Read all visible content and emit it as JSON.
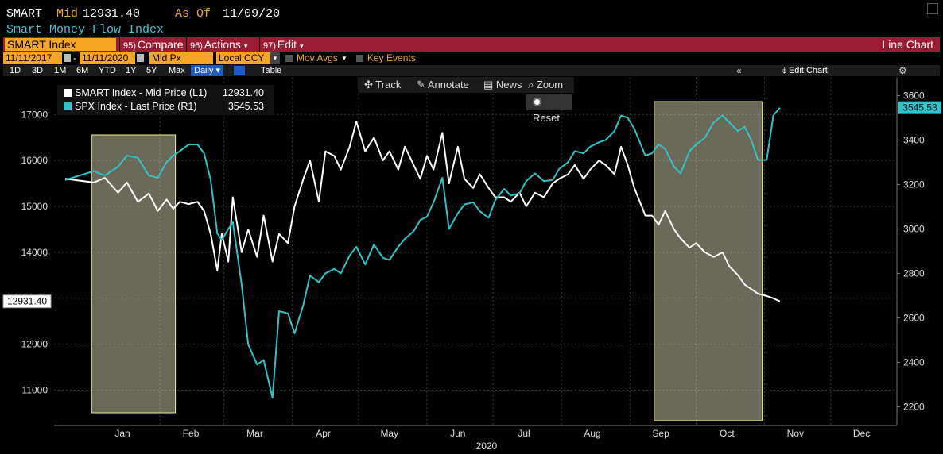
{
  "header": {
    "ticker": "SMART",
    "mid_label": "Mid",
    "mid_value": "12931.40",
    "as_of_label": "As Of",
    "as_of_date": "11/09/20",
    "subtitle": "Smart Money Flow Index"
  },
  "toolbar": {
    "index_field": "SMART Index",
    "compare_num": "95)",
    "compare_label": "Compare",
    "actions_num": "96)",
    "actions_label": "Actions",
    "edit_num": "97)",
    "edit_label": "Edit",
    "chart_type": "Line Chart"
  },
  "settings": {
    "start_date": "11/11/2017",
    "end_date": "11/11/2020",
    "price_field": "Mid Px",
    "currency": "Local CCY",
    "mov_avgs": "Mov Avgs",
    "key_events": "Key Events"
  },
  "ranges": {
    "buttons": [
      "1D",
      "3D",
      "1M",
      "6M",
      "YTD",
      "1Y",
      "5Y",
      "Max"
    ],
    "active": "Daily",
    "table_label": "Table",
    "edit_chart": "Edit Chart"
  },
  "tools": {
    "track": "Track",
    "annotate": "Annotate",
    "news": "News",
    "zoom": "Zoom",
    "reset": "Reset"
  },
  "colors": {
    "background": "#000000",
    "smart_line": "#ffffff",
    "spx_line": "#2ec4c9",
    "highlight_fill": "#fffbd1",
    "highlight_border": "#f3f08a",
    "accent_orange": "#f5a623",
    "toolbar_red": "#9b1c31"
  },
  "chart_data": {
    "type": "line",
    "xlabel": "2020",
    "x_tick_labels": [
      "Jan",
      "Feb",
      "Mar",
      "Apr",
      "May",
      "Jun",
      "Jul",
      "Aug",
      "Sep",
      "Oct",
      "Nov",
      "Dec"
    ],
    "y_left": {
      "ticks": [
        11000,
        12000,
        13000,
        14000,
        15000,
        16000,
        17000
      ],
      "range": [
        10300,
        17800
      ],
      "current_label": "12931.40"
    },
    "y_right": {
      "ticks": [
        2200,
        2400,
        2600,
        2800,
        3000,
        3200,
        3400,
        3600
      ],
      "range": [
        2130,
        3680
      ],
      "current_label": "3545.53"
    },
    "grid": true,
    "legend_position": "top-left",
    "highlight_regions": [
      {
        "from": "2020-01-01",
        "to": "2020-02-08"
      },
      {
        "from": "2020-09-12",
        "to": "2020-10-31"
      }
    ],
    "series": [
      {
        "name": "SMART Index - Mid Price (L1)",
        "legend_value": "12931.40",
        "axis": "left",
        "points": [
          [
            "2019-12-20",
            15600
          ],
          [
            "2020-01-02",
            15520
          ],
          [
            "2020-01-07",
            15620
          ],
          [
            "2020-01-13",
            15300
          ],
          [
            "2020-01-17",
            15520
          ],
          [
            "2020-01-22",
            15100
          ],
          [
            "2020-01-27",
            15280
          ],
          [
            "2020-01-31",
            14900
          ],
          [
            "2020-02-04",
            15150
          ],
          [
            "2020-02-07",
            14950
          ],
          [
            "2020-02-10",
            15100
          ],
          [
            "2020-02-14",
            15050
          ],
          [
            "2020-02-18",
            15100
          ],
          [
            "2020-02-21",
            14900
          ],
          [
            "2020-02-24",
            14400
          ],
          [
            "2020-02-27",
            13600
          ],
          [
            "2020-02-29",
            14400
          ],
          [
            "2020-03-03",
            13800
          ],
          [
            "2020-03-05",
            15200
          ],
          [
            "2020-03-09",
            14000
          ],
          [
            "2020-03-12",
            14500
          ],
          [
            "2020-03-16",
            13900
          ],
          [
            "2020-03-19",
            14800
          ],
          [
            "2020-03-23",
            13800
          ],
          [
            "2020-03-26",
            14400
          ],
          [
            "2020-03-30",
            14200
          ],
          [
            "2020-04-02",
            15000
          ],
          [
            "2020-04-06",
            15600
          ],
          [
            "2020-04-09",
            16000
          ],
          [
            "2020-04-13",
            15100
          ],
          [
            "2020-04-16",
            16200
          ],
          [
            "2020-04-20",
            16100
          ],
          [
            "2020-04-23",
            15800
          ],
          [
            "2020-04-27",
            16300
          ],
          [
            "2020-04-30",
            16850
          ],
          [
            "2020-05-04",
            16200
          ],
          [
            "2020-05-08",
            16500
          ],
          [
            "2020-05-12",
            16000
          ],
          [
            "2020-05-15",
            16200
          ],
          [
            "2020-05-19",
            15800
          ],
          [
            "2020-05-22",
            16300
          ],
          [
            "2020-05-26",
            15900
          ],
          [
            "2020-05-29",
            15600
          ],
          [
            "2020-06-01",
            16100
          ],
          [
            "2020-06-04",
            15800
          ],
          [
            "2020-06-08",
            16600
          ],
          [
            "2020-06-11",
            15500
          ],
          [
            "2020-06-15",
            16300
          ],
          [
            "2020-06-18",
            15600
          ],
          [
            "2020-06-22",
            15400
          ],
          [
            "2020-06-25",
            15700
          ],
          [
            "2020-06-29",
            15400
          ],
          [
            "2020-07-02",
            15200
          ],
          [
            "2020-07-06",
            15200
          ],
          [
            "2020-07-09",
            15100
          ],
          [
            "2020-07-13",
            15300
          ],
          [
            "2020-07-16",
            15000
          ],
          [
            "2020-07-20",
            15300
          ],
          [
            "2020-07-24",
            15200
          ],
          [
            "2020-07-28",
            15500
          ],
          [
            "2020-07-31",
            15600
          ],
          [
            "2020-08-04",
            15700
          ],
          [
            "2020-08-07",
            15900
          ],
          [
            "2020-08-11",
            15600
          ],
          [
            "2020-08-14",
            15800
          ],
          [
            "2020-08-18",
            16000
          ],
          [
            "2020-08-21",
            15900
          ],
          [
            "2020-08-25",
            15700
          ],
          [
            "2020-08-28",
            16300
          ],
          [
            "2020-08-31",
            15900
          ],
          [
            "2020-09-03",
            15400
          ],
          [
            "2020-09-08",
            14800
          ],
          [
            "2020-09-11",
            14800
          ],
          [
            "2020-09-14",
            14600
          ],
          [
            "2020-09-17",
            14900
          ],
          [
            "2020-09-21",
            14500
          ],
          [
            "2020-09-24",
            14300
          ],
          [
            "2020-09-28",
            14100
          ],
          [
            "2020-10-01",
            14200
          ],
          [
            "2020-10-05",
            14000
          ],
          [
            "2020-10-09",
            13900
          ],
          [
            "2020-10-13",
            14000
          ],
          [
            "2020-10-16",
            13700
          ],
          [
            "2020-10-20",
            13500
          ],
          [
            "2020-10-23",
            13300
          ],
          [
            "2020-10-26",
            13200
          ],
          [
            "2020-10-29",
            13100
          ],
          [
            "2020-11-02",
            13050
          ],
          [
            "2020-11-05",
            13000
          ],
          [
            "2020-11-08",
            12931.4
          ]
        ]
      },
      {
        "name": "SPX Index - Last Price (R1)",
        "legend_value": "3545.53",
        "axis": "right",
        "points": [
          [
            "2019-12-20",
            3220
          ],
          [
            "2020-01-02",
            3260
          ],
          [
            "2020-01-07",
            3240
          ],
          [
            "2020-01-13",
            3280
          ],
          [
            "2020-01-17",
            3330
          ],
          [
            "2020-01-22",
            3320
          ],
          [
            "2020-01-27",
            3240
          ],
          [
            "2020-01-31",
            3230
          ],
          [
            "2020-02-04",
            3300
          ],
          [
            "2020-02-07",
            3330
          ],
          [
            "2020-02-10",
            3350
          ],
          [
            "2020-02-14",
            3380
          ],
          [
            "2020-02-18",
            3380
          ],
          [
            "2020-02-21",
            3340
          ],
          [
            "2020-02-24",
            3220
          ],
          [
            "2020-02-27",
            2980
          ],
          [
            "2020-02-29",
            2950
          ],
          [
            "2020-03-03",
            3000
          ],
          [
            "2020-03-05",
            3030
          ],
          [
            "2020-03-09",
            2750
          ],
          [
            "2020-03-12",
            2480
          ],
          [
            "2020-03-16",
            2390
          ],
          [
            "2020-03-19",
            2410
          ],
          [
            "2020-03-23",
            2240
          ],
          [
            "2020-03-26",
            2630
          ],
          [
            "2020-03-30",
            2620
          ],
          [
            "2020-04-02",
            2530
          ],
          [
            "2020-04-06",
            2660
          ],
          [
            "2020-04-09",
            2790
          ],
          [
            "2020-04-13",
            2760
          ],
          [
            "2020-04-16",
            2800
          ],
          [
            "2020-04-20",
            2820
          ],
          [
            "2020-04-23",
            2800
          ],
          [
            "2020-04-27",
            2880
          ],
          [
            "2020-04-30",
            2920
          ],
          [
            "2020-05-04",
            2840
          ],
          [
            "2020-05-08",
            2930
          ],
          [
            "2020-05-12",
            2870
          ],
          [
            "2020-05-15",
            2860
          ],
          [
            "2020-05-19",
            2920
          ],
          [
            "2020-05-22",
            2955
          ],
          [
            "2020-05-26",
            2990
          ],
          [
            "2020-05-29",
            3040
          ],
          [
            "2020-06-01",
            3055
          ],
          [
            "2020-06-04",
            3120
          ],
          [
            "2020-06-08",
            3230
          ],
          [
            "2020-06-11",
            3000
          ],
          [
            "2020-06-15",
            3070
          ],
          [
            "2020-06-18",
            3110
          ],
          [
            "2020-06-22",
            3120
          ],
          [
            "2020-06-25",
            3080
          ],
          [
            "2020-06-29",
            3050
          ],
          [
            "2020-07-02",
            3130
          ],
          [
            "2020-07-06",
            3180
          ],
          [
            "2020-07-09",
            3150
          ],
          [
            "2020-07-13",
            3160
          ],
          [
            "2020-07-16",
            3215
          ],
          [
            "2020-07-20",
            3250
          ],
          [
            "2020-07-24",
            3215
          ],
          [
            "2020-07-28",
            3220
          ],
          [
            "2020-07-31",
            3270
          ],
          [
            "2020-08-04",
            3300
          ],
          [
            "2020-08-07",
            3350
          ],
          [
            "2020-08-11",
            3340
          ],
          [
            "2020-08-14",
            3370
          ],
          [
            "2020-08-18",
            3390
          ],
          [
            "2020-08-21",
            3400
          ],
          [
            "2020-08-25",
            3440
          ],
          [
            "2020-08-28",
            3510
          ],
          [
            "2020-08-31",
            3500
          ],
          [
            "2020-09-03",
            3450
          ],
          [
            "2020-09-08",
            3330
          ],
          [
            "2020-09-11",
            3340
          ],
          [
            "2020-09-14",
            3380
          ],
          [
            "2020-09-17",
            3360
          ],
          [
            "2020-09-21",
            3280
          ],
          [
            "2020-09-24",
            3250
          ],
          [
            "2020-09-28",
            3350
          ],
          [
            "2020-10-01",
            3380
          ],
          [
            "2020-10-05",
            3410
          ],
          [
            "2020-10-09",
            3480
          ],
          [
            "2020-10-13",
            3510
          ],
          [
            "2020-10-16",
            3480
          ],
          [
            "2020-10-20",
            3440
          ],
          [
            "2020-10-23",
            3460
          ],
          [
            "2020-10-26",
            3400
          ],
          [
            "2020-10-29",
            3310
          ],
          [
            "2020-11-02",
            3310
          ],
          [
            "2020-11-05",
            3510
          ],
          [
            "2020-11-08",
            3545.53
          ]
        ]
      }
    ]
  }
}
